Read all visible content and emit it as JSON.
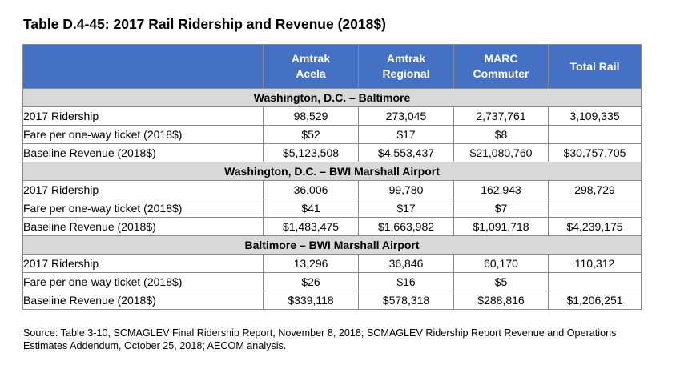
{
  "title": "Table D.4-45: 2017 Rail Ridership and Revenue (2018$)",
  "columns": [
    {
      "line1": "Amtrak",
      "line2": "Acela"
    },
    {
      "line1": "Amtrak",
      "line2": "Regional"
    },
    {
      "line1": "MARC",
      "line2": "Commuter"
    },
    {
      "line1": "Total Rail",
      "line2": ""
    }
  ],
  "sections": [
    {
      "heading": "Washington, D.C. – Baltimore",
      "rows": [
        {
          "label": "2017 Ridership",
          "values": [
            "98,529",
            "273,045",
            "2,737,761",
            "3,109,335"
          ]
        },
        {
          "label": "Fare per one-way ticket (2018$)",
          "values": [
            "$52",
            "$17",
            "$8",
            ""
          ]
        },
        {
          "label": "Baseline Revenue (2018$)",
          "values": [
            "$5,123,508",
            "$4,553,437",
            "$21,080,760",
            "$30,757,705"
          ]
        }
      ]
    },
    {
      "heading": "Washington, D.C. – BWI Marshall Airport",
      "rows": [
        {
          "label": "2017 Ridership",
          "values": [
            "36,006",
            "99,780",
            "162,943",
            "298,729"
          ]
        },
        {
          "label": "Fare per one-way ticket (2018$)",
          "values": [
            "$41",
            "$17",
            "$7",
            ""
          ]
        },
        {
          "label": "Baseline Revenue (2018$)",
          "values": [
            "$1,483,475",
            "$1,663,982",
            "$1,091,718",
            "$4,239,175"
          ]
        }
      ]
    },
    {
      "heading": "Baltimore – BWI Marshall Airport",
      "rows": [
        {
          "label": "2017 Ridership",
          "values": [
            "13,296",
            "36,846",
            "60,170",
            "110,312"
          ]
        },
        {
          "label": "Fare per one-way ticket (2018$)",
          "values": [
            "$26",
            "$16",
            "$5",
            ""
          ]
        },
        {
          "label": "Baseline Revenue (2018$)",
          "values": [
            "$339,118",
            "$578,318",
            "$288,816",
            "$1,206,251"
          ]
        }
      ]
    }
  ],
  "source": "Source: Table 3-10, SCMAGLEV Final Ridership Report, November 8, 2018; SCMAGLEV Ridership Report Revenue and Operations Estimates Addendum, October 25, 2018; AECOM analysis.",
  "colors": {
    "header_bg": "#4471c4",
    "header_text": "#ffffff",
    "section_bg": "#d9d9d9",
    "border": "#8a8a8a"
  }
}
